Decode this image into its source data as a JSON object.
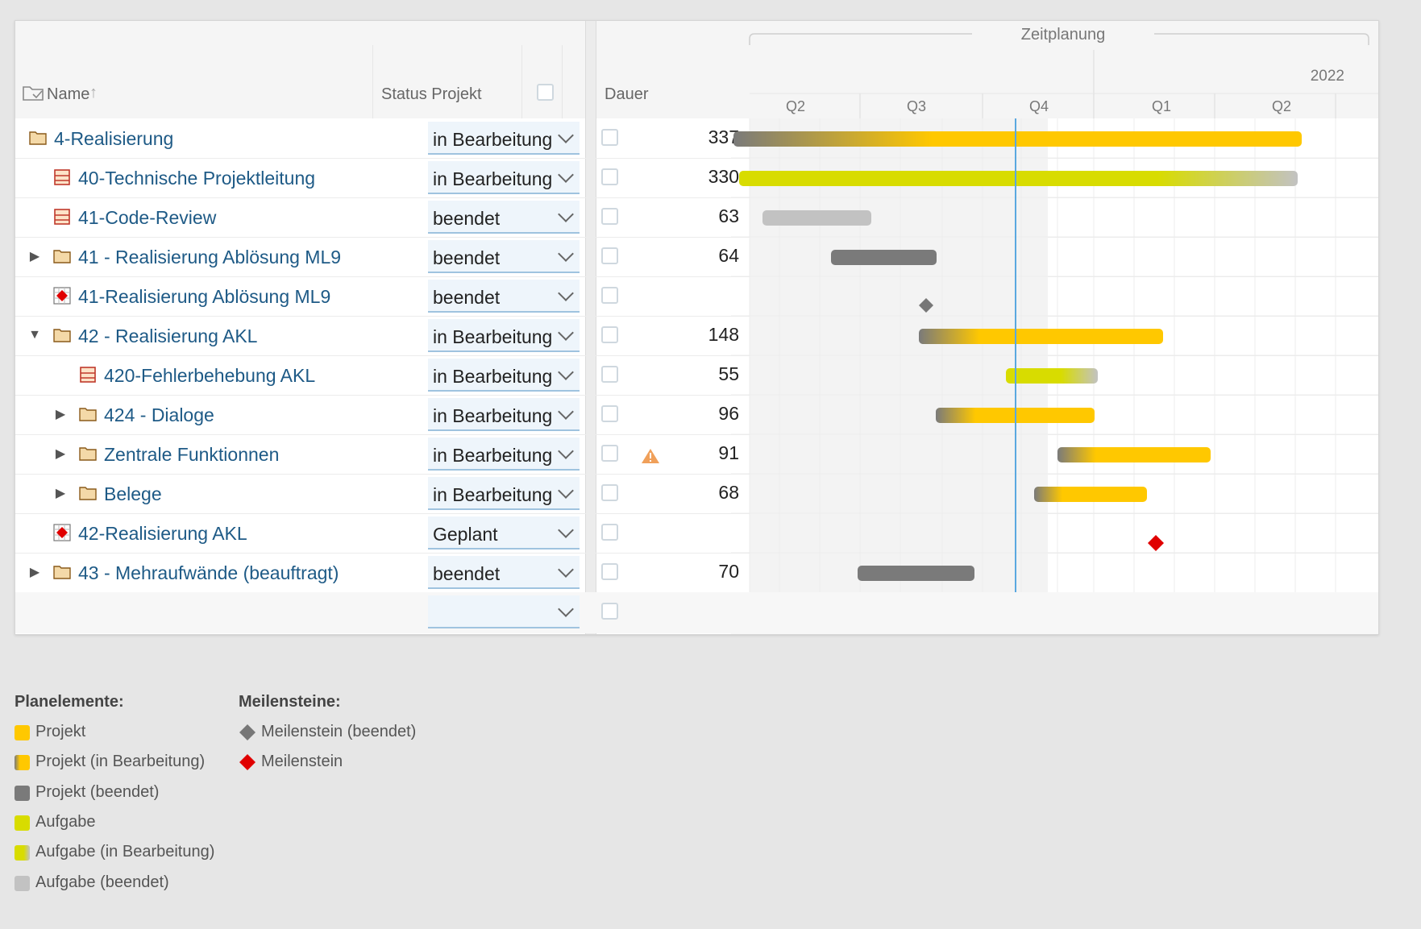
{
  "columns": {
    "name": "Name",
    "status": "Status Projekt",
    "duration": "Dauer"
  },
  "timeline": {
    "title": "Zeitplanung",
    "year": "2022",
    "quarters": [
      "Q2",
      "Q3",
      "Q4",
      "Q1",
      "Q2"
    ]
  },
  "rows": [
    {
      "name": "4-Realisierung",
      "status": "in Bearbeitung",
      "duration": "337"
    },
    {
      "name": "40-Technische Projektleitung",
      "status": "in Bearbeitung",
      "duration": "330"
    },
    {
      "name": "41-Code-Review",
      "status": "beendet",
      "duration": "63"
    },
    {
      "name": "41 - Realisierung Ablösung ML9",
      "status": "beendet",
      "duration": "64"
    },
    {
      "name": "41-Realisierung Ablösung ML9",
      "status": "beendet",
      "duration": ""
    },
    {
      "name": "42 - Realisierung AKL",
      "status": "in Bearbeitung",
      "duration": "148"
    },
    {
      "name": "420-Fehlerbehebung AKL",
      "status": "in Bearbeitung",
      "duration": "55"
    },
    {
      "name": "424 - Dialoge",
      "status": "in Bearbeitung",
      "duration": "96"
    },
    {
      "name": "Zentrale Funktionnen",
      "status": "in Bearbeitung",
      "duration": "91"
    },
    {
      "name": "Belege",
      "status": "in Bearbeitung",
      "duration": "68"
    },
    {
      "name": "42-Realisierung AKL",
      "status": "Geplant",
      "duration": ""
    },
    {
      "name": "43 - Mehraufwände (beauftragt)",
      "status": "beendet",
      "duration": "70"
    }
  ],
  "legend": {
    "plan_title": "Planelemente:",
    "milestone_title": "Meilensteine:",
    "plan_items": [
      "Projekt",
      "Projekt (in Bearbeitung)",
      "Projekt (beendet)",
      "Aufgabe",
      "Aufgabe (in Bearbeitung)",
      "Aufgabe (beendet)"
    ],
    "milestone_items": [
      "Meilenstein (beendet)",
      "Meilenstein"
    ]
  },
  "colors": {
    "project": "#ffc800",
    "project_done": "#7a7a7a",
    "task": "#d8dc00",
    "task_done": "#c2c2c2",
    "milestone": "#e00000",
    "milestone_done": "#777777",
    "today_line": "#5aa8e0",
    "link": "#1e5a86"
  }
}
